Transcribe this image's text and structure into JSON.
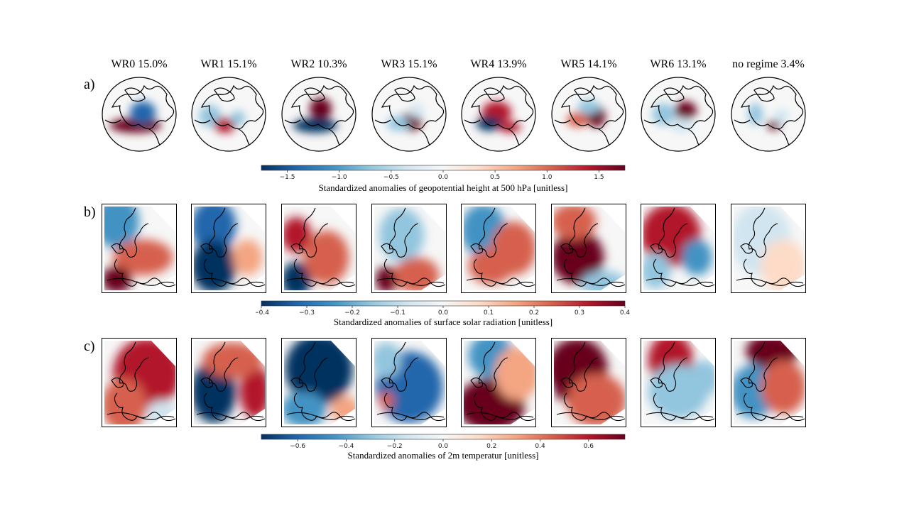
{
  "figure": {
    "columns": [
      {
        "title": "WR0 15.0%"
      },
      {
        "title": "WR1 15.1%"
      },
      {
        "title": "WR2 10.3%"
      },
      {
        "title": "WR3 15.1%"
      },
      {
        "title": "WR4 13.9%"
      },
      {
        "title": "WR5 14.1%"
      },
      {
        "title": "WR6 13.1%"
      },
      {
        "title": "no regime 3.4%"
      }
    ],
    "row_labels": {
      "a": "a)",
      "b": "b)",
      "c": "c)"
    },
    "colorbars": {
      "a": {
        "label": "Standardized anomalies of geopotential height at 500 hPa [unitless]",
        "range": [
          -1.75,
          1.75
        ],
        "ticks": [
          "−1.5",
          "−1.0",
          "−0.5",
          "0.0",
          "0.5",
          "1.0",
          "1.5"
        ],
        "tick_values": [
          -1.5,
          -1.0,
          -0.5,
          0.0,
          0.5,
          1.0,
          1.5
        ]
      },
      "b": {
        "label": "Standardized anomalies of surface solar radiation [unitless]",
        "range": [
          -0.4,
          0.4
        ],
        "ticks": [
          "−0.4",
          "−0.3",
          "−0.2",
          "−0.1",
          "0.0",
          "0.1",
          "0.2",
          "0.3",
          "0.4"
        ],
        "tick_values": [
          -0.4,
          -0.3,
          -0.2,
          -0.1,
          0.0,
          0.1,
          0.2,
          0.3,
          0.4
        ]
      },
      "c": {
        "label": "Standardized anomalies of 2m temperatur [unitless]",
        "range": [
          -0.75,
          0.75
        ],
        "ticks": [
          "−0.6",
          "−0.4",
          "−0.2",
          "0.0",
          "0.2",
          "0.4",
          "0.6"
        ],
        "tick_values": [
          -0.6,
          -0.4,
          -0.2,
          0.0,
          0.2,
          0.4,
          0.6
        ]
      }
    },
    "colormap": [
      "#053061",
      "#2166ac",
      "#4393c3",
      "#92c5de",
      "#d1e5f0",
      "#f7f7f7",
      "#fddbc7",
      "#f4a582",
      "#d6604d",
      "#b2182b",
      "#67001f"
    ]
  }
}
